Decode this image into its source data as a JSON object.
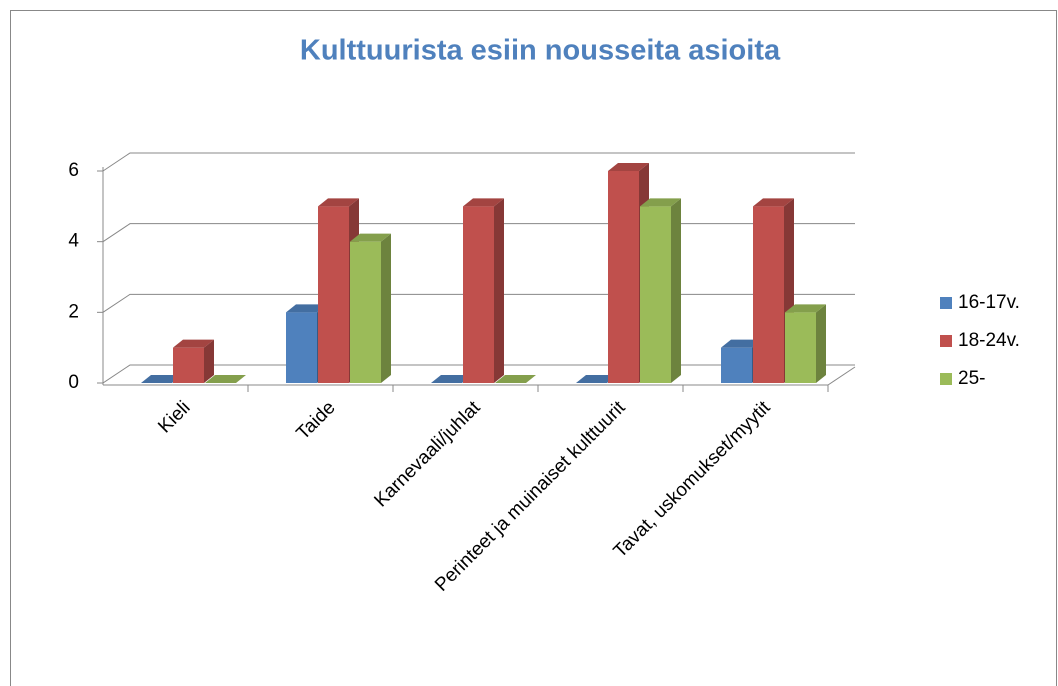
{
  "chart_data": {
    "type": "bar3d",
    "title": "Kulttuurista esiin nousseita asioita",
    "categories": [
      "Kieli",
      "Taide",
      "Karnevaali/juhlat",
      "Perinteet ja muinaiset kulttuurit",
      "Tavat, uskomukset/myytit"
    ],
    "series": [
      {
        "name": "16-17v.",
        "color": "#4f81bd",
        "values": [
          0,
          2,
          0,
          0,
          1
        ]
      },
      {
        "name": "18-24v.",
        "color": "#c0504d",
        "values": [
          1,
          5,
          5,
          6,
          5
        ]
      },
      {
        "name": "25-",
        "color": "#9bbb59",
        "values": [
          0,
          4,
          0,
          5,
          2
        ]
      }
    ],
    "ylim": [
      0,
      6
    ],
    "yticks": [
      0,
      2,
      4,
      6
    ],
    "grid": true,
    "legend": "right"
  }
}
